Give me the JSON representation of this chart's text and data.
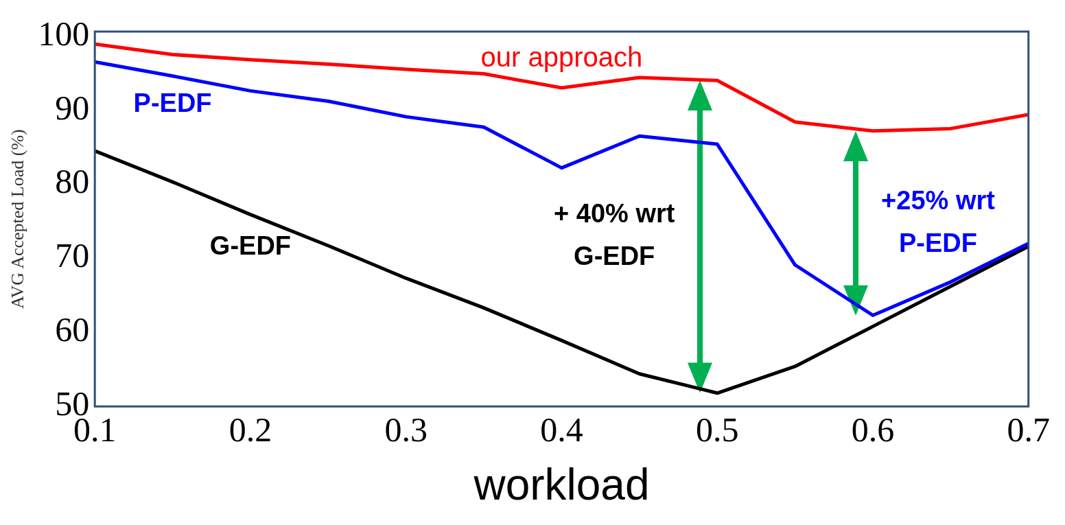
{
  "chart_data": {
    "type": "line",
    "xlabel": "workload",
    "ylabel": "AVG Accepted Load (%)",
    "x": [
      0.1,
      0.15,
      0.2,
      0.25,
      0.3,
      0.35,
      0.4,
      0.45,
      0.5,
      0.55,
      0.6,
      0.65,
      0.7
    ],
    "series": [
      {
        "name": "our approach",
        "color": "#ff0000",
        "values": [
          98.9,
          97.5,
          96.8,
          96.2,
          95.5,
          94.9,
          93.0,
          94.4,
          94.0,
          88.4,
          87.2,
          87.5,
          89.4
        ]
      },
      {
        "name": "P-EDF",
        "color": "#0000ff",
        "values": [
          96.5,
          94.6,
          92.6,
          91.2,
          89.1,
          87.7,
          82.2,
          86.5,
          85.4,
          69.1,
          62.3,
          66.8,
          72.0
        ]
      },
      {
        "name": "G-EDF",
        "color": "#000000",
        "values": [
          84.5,
          80.3,
          75.9,
          71.7,
          67.3,
          63.3,
          58.9,
          54.4,
          51.8,
          55.4,
          60.8,
          66.2,
          71.6
        ]
      }
    ],
    "xlim": [
      0.1,
      0.7
    ],
    "xticks": [
      0.1,
      0.2,
      0.3,
      0.4,
      0.5,
      0.6,
      0.7
    ],
    "ylim": [
      50,
      100.6
    ],
    "yticks": [
      50,
      60,
      70,
      80,
      90,
      100
    ],
    "grid": false,
    "legend": false,
    "marker": "none",
    "line_style": "solid",
    "annotations": [
      "+ 40% wrt\nG-EDF",
      "+25% wrt\nP-EDF"
    ]
  }
}
